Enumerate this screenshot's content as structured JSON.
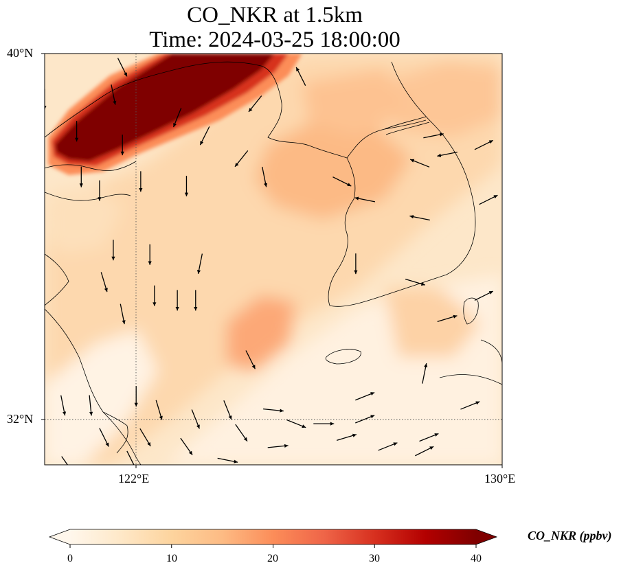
{
  "title": {
    "line1": "CO_NKR at 1.5km",
    "line2": "Time: 2024-03-25 18:00:00"
  },
  "axes": {
    "lat_labels": [
      "40°N",
      "32°N"
    ],
    "lon_labels": [
      "122°E",
      "130°E"
    ],
    "lon_range": [
      120,
      130
    ],
    "lat_range": [
      31,
      40
    ],
    "gridlines": {
      "lons": [
        122,
        130
      ],
      "lats": [
        32,
        40
      ],
      "style": "dotted"
    }
  },
  "colorbar": {
    "label": "CO_NKR (ppbv)",
    "ticks": [
      "0",
      "10",
      "20",
      "30",
      "40"
    ],
    "min": 0,
    "max": 40,
    "extend": "both",
    "colormap": "OrRd",
    "colors": [
      "#fff7ec",
      "#fee8c8",
      "#fdd49e",
      "#fdbb84",
      "#fc8d59",
      "#ef6548",
      "#d7301f",
      "#b30000",
      "#7f0000"
    ]
  },
  "chart_data": {
    "type": "heatmap",
    "variable": "CO_NKR",
    "level": "1.5km",
    "units": "ppbv",
    "field_features": [
      {
        "feature": "high-concentration band (saturated ≥40)",
        "lon": [
          120.1,
          125.3
        ],
        "lat": [
          37.4,
          40.0
        ],
        "value": 40
      },
      {
        "feature": "moderate plume over Yellow Sea",
        "lon": [
          123.8,
          127.0
        ],
        "lat": [
          36.0,
          38.2
        ],
        "value": 16
      },
      {
        "feature": "moderate plume south-west of Korea",
        "lon": [
          124.0,
          126.0
        ],
        "lat": [
          32.8,
          34.2
        ],
        "value": 18
      },
      {
        "feature": "background",
        "value": 6
      }
    ],
    "wind_vectors": [
      {
        "lon": 121.7,
        "lat": 39.7,
        "u": 0.5,
        "v": -1
      },
      {
        "lon": 120.0,
        "lat": 39.0,
        "u": 0,
        "v": -1
      },
      {
        "lon": 121.5,
        "lat": 39.1,
        "u": 0.2,
        "v": -1
      },
      {
        "lon": 120.7,
        "lat": 38.3,
        "u": 0,
        "v": -1
      },
      {
        "lon": 121.7,
        "lat": 38.0,
        "u": 0,
        "v": -1
      },
      {
        "lon": 123.5,
        "lat": 38.2,
        "u": -0.5,
        "v": -1
      },
      {
        "lon": 122.9,
        "lat": 38.6,
        "u": -0.4,
        "v": -1
      },
      {
        "lon": 124.6,
        "lat": 38.9,
        "u": -0.8,
        "v": -1
      },
      {
        "lon": 125.6,
        "lat": 39.5,
        "u": -0.5,
        "v": 1
      },
      {
        "lon": 124.3,
        "lat": 37.7,
        "u": -0.8,
        "v": -1
      },
      {
        "lon": 120.8,
        "lat": 37.3,
        "u": 0,
        "v": -1
      },
      {
        "lon": 121.2,
        "lat": 37.0,
        "u": 0,
        "v": -1
      },
      {
        "lon": 122.1,
        "lat": 37.2,
        "u": 0,
        "v": -1
      },
      {
        "lon": 123.1,
        "lat": 37.1,
        "u": 0,
        "v": -1
      },
      {
        "lon": 124.8,
        "lat": 37.3,
        "u": 0.2,
        "v": -1
      },
      {
        "lon": 126.5,
        "lat": 37.2,
        "u": 1,
        "v": -0.5
      },
      {
        "lon": 127.0,
        "lat": 36.8,
        "u": -1,
        "v": 0.2
      },
      {
        "lon": 128.5,
        "lat": 38.2,
        "u": 1,
        "v": 0.2
      },
      {
        "lon": 129.6,
        "lat": 38.0,
        "u": 1,
        "v": 0.5
      },
      {
        "lon": 128.8,
        "lat": 37.8,
        "u": -1,
        "v": -0.2
      },
      {
        "lon": 128.2,
        "lat": 37.6,
        "u": -1,
        "v": 0.4
      },
      {
        "lon": 129.7,
        "lat": 36.8,
        "u": 1,
        "v": 0.5
      },
      {
        "lon": 128.2,
        "lat": 36.4,
        "u": -1,
        "v": 0.2
      },
      {
        "lon": 121.5,
        "lat": 35.7,
        "u": 0,
        "v": -1
      },
      {
        "lon": 122.3,
        "lat": 35.6,
        "u": 0,
        "v": -1
      },
      {
        "lon": 123.4,
        "lat": 35.4,
        "u": -0.2,
        "v": -1
      },
      {
        "lon": 121.3,
        "lat": 35.0,
        "u": 0.3,
        "v": -1
      },
      {
        "lon": 122.4,
        "lat": 34.7,
        "u": 0,
        "v": -1
      },
      {
        "lon": 121.7,
        "lat": 34.3,
        "u": 0.2,
        "v": -1
      },
      {
        "lon": 122.9,
        "lat": 34.6,
        "u": 0,
        "v": -1
      },
      {
        "lon": 123.3,
        "lat": 34.6,
        "u": 0,
        "v": -1
      },
      {
        "lon": 126.8,
        "lat": 35.4,
        "u": 0,
        "v": -1
      },
      {
        "lon": 128.1,
        "lat": 35.0,
        "u": 1,
        "v": -0.3
      },
      {
        "lon": 128.8,
        "lat": 34.2,
        "u": 1,
        "v": 0.3
      },
      {
        "lon": 129.6,
        "lat": 34.7,
        "u": 1,
        "v": 0.5
      },
      {
        "lon": 124.5,
        "lat": 33.3,
        "u": 0.5,
        "v": -1
      },
      {
        "lon": 128.3,
        "lat": 33.0,
        "u": 0.2,
        "v": 1
      },
      {
        "lon": 127.0,
        "lat": 32.5,
        "u": 1,
        "v": 0.4
      },
      {
        "lon": 127.0,
        "lat": 32.0,
        "u": 1,
        "v": 0.4
      },
      {
        "lon": 122.0,
        "lat": 32.5,
        "u": 0,
        "v": -1
      },
      {
        "lon": 122.5,
        "lat": 32.2,
        "u": 0.3,
        "v": -1
      },
      {
        "lon": 123.3,
        "lat": 32.0,
        "u": 0.4,
        "v": -1
      },
      {
        "lon": 124.0,
        "lat": 32.2,
        "u": 0.4,
        "v": -1
      },
      {
        "lon": 124.3,
        "lat": 31.7,
        "u": 0.7,
        "v": -1
      },
      {
        "lon": 125.0,
        "lat": 32.2,
        "u": 1,
        "v": -0.1
      },
      {
        "lon": 125.5,
        "lat": 31.9,
        "u": 1,
        "v": -0.4
      },
      {
        "lon": 126.1,
        "lat": 31.9,
        "u": 1,
        "v": 0
      },
      {
        "lon": 128.4,
        "lat": 31.6,
        "u": 1,
        "v": 0.4
      },
      {
        "lon": 129.3,
        "lat": 32.3,
        "u": 1,
        "v": 0.4
      },
      {
        "lon": 120.4,
        "lat": 32.3,
        "u": 0.2,
        "v": -1
      },
      {
        "lon": 121.0,
        "lat": 32.3,
        "u": 0.1,
        "v": -1
      },
      {
        "lon": 121.3,
        "lat": 31.6,
        "u": 0.5,
        "v": -1
      },
      {
        "lon": 122.2,
        "lat": 31.6,
        "u": 0.6,
        "v": -1
      },
      {
        "lon": 123.1,
        "lat": 31.4,
        "u": 0.7,
        "v": -1
      },
      {
        "lon": 125.1,
        "lat": 31.4,
        "u": 1,
        "v": 0.1
      },
      {
        "lon": 126.6,
        "lat": 31.6,
        "u": 1,
        "v": 0.3
      },
      {
        "lon": 127.5,
        "lat": 31.4,
        "u": 1,
        "v": 0.4
      },
      {
        "lon": 120.5,
        "lat": 31.0,
        "u": 0.7,
        "v": -1
      },
      {
        "lon": 121.9,
        "lat": 31.1,
        "u": 0.5,
        "v": -1
      },
      {
        "lon": 124.0,
        "lat": 31.1,
        "u": 1,
        "v": -0.2
      },
      {
        "lon": 128.3,
        "lat": 31.3,
        "u": 1,
        "v": 0.5
      }
    ]
  }
}
